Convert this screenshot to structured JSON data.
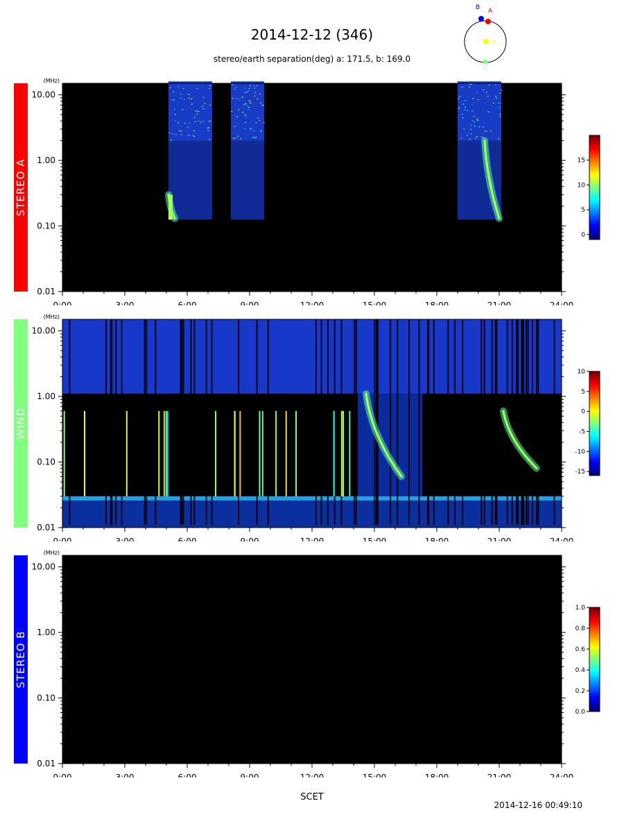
{
  "header": {
    "title": "2014-12-12 (346)",
    "subtitle": "stereo/earth separation(deg) a: 171.5, b: 169.0",
    "generated": "2014-12-16 00:49:10",
    "xlabel": "SCET"
  },
  "orbit_diagram": {
    "labels": {
      "b": "B",
      "a": "A",
      "sun": "S",
      "earth": "E"
    },
    "colors": {
      "b": "#0000ff",
      "a": "#ff0000",
      "sun": "#ffff00",
      "earth": "#80ff80"
    }
  },
  "chart_data": [
    {
      "type": "heatmap",
      "panel": "STEREO A",
      "color": "#ff0000",
      "unit": "(MHz)",
      "x": {
        "label": "SCET",
        "range": [
          0,
          24
        ],
        "ticks": [
          "0:00",
          "3:00",
          "6:00",
          "9:00",
          "12:00",
          "15:00",
          "18:00",
          "21:00",
          "24:00"
        ]
      },
      "y": {
        "scale": "log",
        "range": [
          0.01,
          15
        ],
        "ticks": [
          "10.00",
          "1.00",
          "0.10",
          "0.01"
        ]
      },
      "colorbar": {
        "range": [
          -1,
          20
        ],
        "ticks": [
          "15",
          "10",
          "5",
          "0"
        ]
      },
      "data_coverage_hours": [
        [
          5.1,
          7.2
        ],
        [
          8.1,
          9.7
        ],
        [
          19.0,
          21.1
        ]
      ],
      "data_range_mhz": [
        0.125,
        16
      ],
      "events": [
        {
          "type": "type III burst",
          "start_hour": 20.3,
          "end_hour": 21.0,
          "from_mhz": 2.0,
          "to_mhz": 0.13
        },
        {
          "type": "enhancement",
          "start_hour": 5.1,
          "end_hour": 5.4,
          "from_mhz": 0.3,
          "to_mhz": 0.13
        }
      ]
    },
    {
      "type": "heatmap",
      "panel": "WIND",
      "color": "#80ff80",
      "unit": "(MHz)",
      "x": {
        "label": "SCET",
        "range": [
          0,
          24
        ],
        "ticks": [
          "0:00",
          "3:00",
          "6:00",
          "9:00",
          "12:00",
          "15:00",
          "18:00",
          "21:00",
          "24:00"
        ]
      },
      "y": {
        "scale": "log",
        "range": [
          0.01,
          15
        ],
        "ticks": [
          "10.00",
          "1.00",
          "0.10",
          "0.01"
        ]
      },
      "colorbar": {
        "range": [
          -16,
          10
        ],
        "ticks": [
          "10",
          "5",
          "0",
          "-5",
          "-10",
          "-15"
        ]
      },
      "events": [
        {
          "type": "type III burst",
          "start_hour": 14.6,
          "end_hour": 16.3,
          "from_mhz": 1.1,
          "to_mhz": 0.06
        },
        {
          "type": "type III burst",
          "start_hour": 21.2,
          "end_hour": 22.8,
          "from_mhz": 0.6,
          "to_mhz": 0.08
        }
      ]
    },
    {
      "type": "heatmap",
      "panel": "STEREO B",
      "color": "#0000ff",
      "unit": "(MHz)",
      "x": {
        "label": "SCET",
        "range": [
          0,
          24
        ],
        "ticks": [
          "0:00",
          "3:00",
          "6:00",
          "9:00",
          "12:00",
          "15:00",
          "18:00",
          "21:00",
          "24:00"
        ]
      },
      "y": {
        "scale": "log",
        "range": [
          0.01,
          15
        ],
        "ticks": [
          "10.00",
          "1.00",
          "0.10",
          "0.01"
        ]
      },
      "colorbar": {
        "range": [
          0,
          1
        ],
        "ticks": [
          "1.0",
          "0.8",
          "0.6",
          "0.4",
          "0.2",
          "0.0"
        ]
      },
      "events": []
    }
  ]
}
